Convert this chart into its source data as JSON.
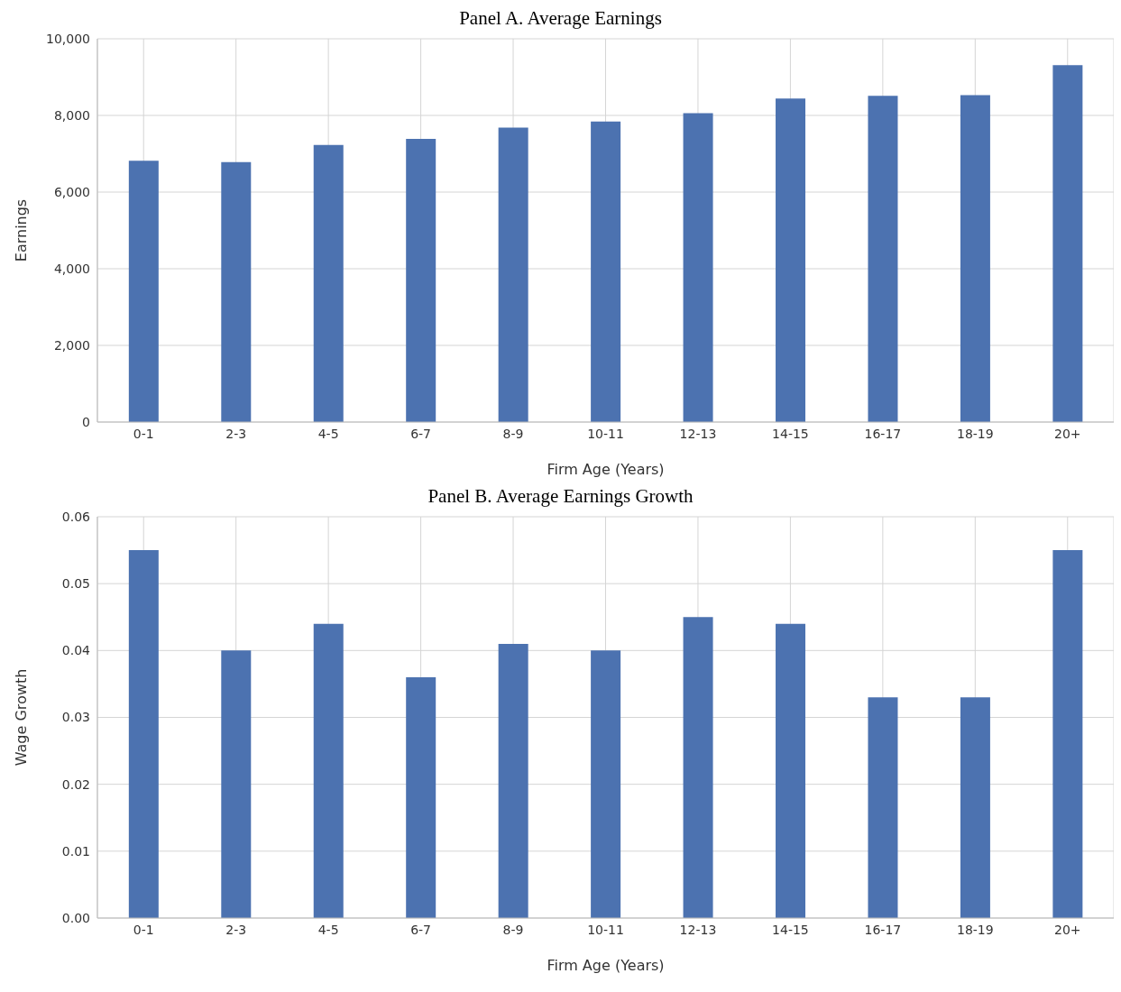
{
  "chart_data": [
    {
      "type": "bar",
      "title": "Panel A. Average Earnings",
      "xlabel": "Firm Age (Years)",
      "ylabel": "Earnings",
      "categories": [
        "0-1",
        "2-3",
        "4-5",
        "6-7",
        "8-9",
        "10-11",
        "12-13",
        "14-15",
        "16-17",
        "18-19",
        "20+"
      ],
      "values": [
        6820,
        6780,
        7230,
        7390,
        7680,
        7840,
        8060,
        8440,
        8510,
        8530,
        9310
      ],
      "color": "#4c72b0",
      "ylim": [
        0,
        10000
      ],
      "yticks": [
        {
          "value": 0,
          "label": "0"
        },
        {
          "value": 2000,
          "label": "2,000"
        },
        {
          "value": 4000,
          "label": "4,000"
        },
        {
          "value": 6000,
          "label": "6,000"
        },
        {
          "value": 8000,
          "label": "8,000"
        },
        {
          "value": 10000,
          "label": "10,000"
        }
      ],
      "grid": true
    },
    {
      "type": "bar",
      "title": "Panel B. Average Earnings Growth",
      "xlabel": "Firm Age (Years)",
      "ylabel": "Wage Growth",
      "categories": [
        "0-1",
        "2-3",
        "4-5",
        "6-7",
        "8-9",
        "10-11",
        "12-13",
        "14-15",
        "16-17",
        "18-19",
        "20+"
      ],
      "values": [
        0.055,
        0.04,
        0.044,
        0.036,
        0.041,
        0.04,
        0.045,
        0.044,
        0.033,
        0.033,
        0.055
      ],
      "color": "#4c72b0",
      "ylim": [
        0,
        0.06
      ],
      "yticks": [
        {
          "value": 0,
          "label": "0.00"
        },
        {
          "value": 0.01,
          "label": "0.01"
        },
        {
          "value": 0.02,
          "label": "0.02"
        },
        {
          "value": 0.03,
          "label": "0.03"
        },
        {
          "value": 0.04,
          "label": "0.04"
        },
        {
          "value": 0.05,
          "label": "0.05"
        },
        {
          "value": 0.06,
          "label": "0.06"
        }
      ],
      "grid": true
    }
  ]
}
